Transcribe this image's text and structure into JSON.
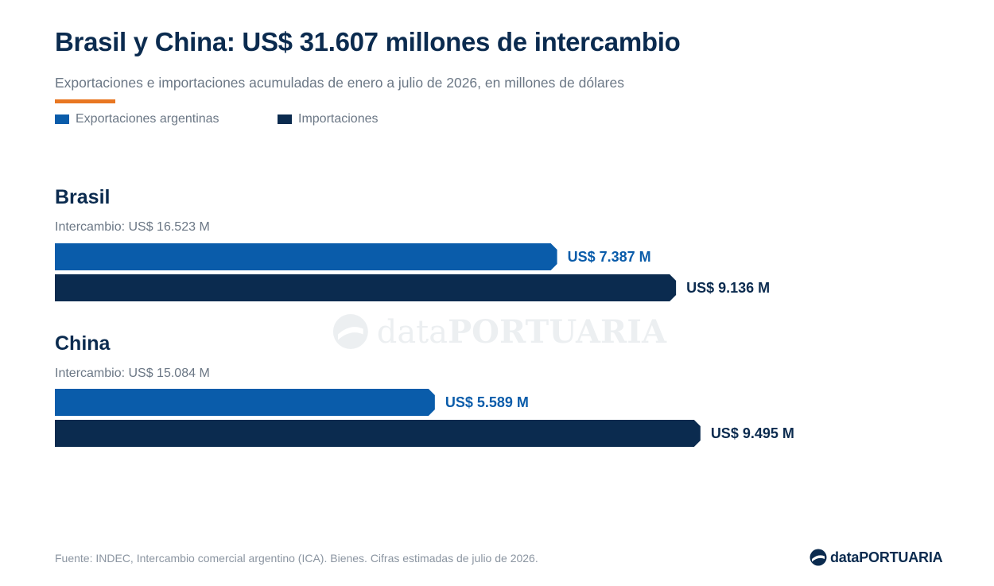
{
  "header": {
    "title": "Brasil y China: US$ 31.607 millones de intercambio",
    "subtitle": "Exportaciones e importaciones acumuladas de enero a julio de 2026, en millones de dólares"
  },
  "colors": {
    "exports": "#0a5caa",
    "imports": "#0b2b4f",
    "accent": "#e87722"
  },
  "chart_data": {
    "type": "bar",
    "orientation": "horizontal",
    "unit": "millones de dólares",
    "legend_position": "top-left",
    "grid": false,
    "categories": [
      "Brasil",
      "China"
    ],
    "series": [
      {
        "name": "Exportaciones argentinas",
        "values": [
          7387,
          5589
        ],
        "labels": [
          "US$ 7.387 M",
          "US$ 5.589 M"
        ]
      },
      {
        "name": "Importaciones",
        "values": [
          9136,
          9495
        ],
        "labels": [
          "US$ 9.136 M",
          "US$ 9.495 M"
        ]
      }
    ],
    "groups": [
      {
        "name": "Brasil",
        "total_label": "Intercambio: US$ 16.523 M"
      },
      {
        "name": "China",
        "total_label": "Intercambio: US$ 15.084 M"
      }
    ]
  },
  "footer": {
    "source": "Fuente: INDEC, Intercambio comercial argentino (ICA). Bienes. Cifras estimadas de julio de 2026.",
    "brand_prefix": "data",
    "brand_suffix": "PORTUARIA",
    "brand_icon": "dataportuaria-logo-icon"
  }
}
